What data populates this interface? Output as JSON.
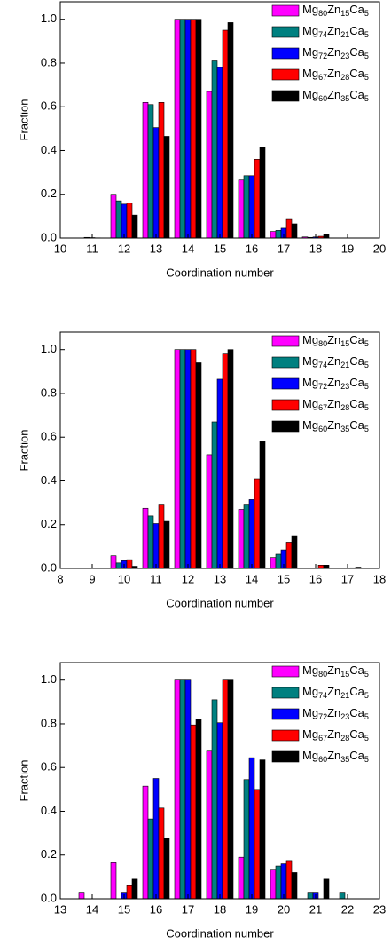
{
  "chart_data": [
    {
      "type": "bar",
      "x_label": "Coordination number",
      "y_label": "Fraction",
      "x": [
        11,
        12,
        13,
        14,
        15,
        16,
        17,
        18
      ],
      "xlim": [
        10,
        20
      ],
      "xticks": [
        10,
        11,
        12,
        13,
        14,
        15,
        16,
        17,
        18,
        19,
        20
      ],
      "ylim": [
        0,
        1.08
      ],
      "yticks": [
        {
          "value": 0,
          "label": "0.0"
        },
        {
          "value": 0.2,
          "label": "0.2"
        },
        {
          "value": 0.4,
          "label": "0.4"
        },
        {
          "value": 0.6,
          "label": "0.6"
        },
        {
          "value": 0.8,
          "label": "0.8"
        },
        {
          "value": 1,
          "label": "1.0"
        }
      ],
      "legend": "upper right",
      "series": [
        {
          "name": "Mg80Zn15Ca5",
          "color": "#ff00ff",
          "values": [
            0,
            0.2,
            0.62,
            1,
            0.67,
            0.265,
            0.03,
            0.005
          ]
        },
        {
          "name": "Mg74Zn21Ca5",
          "color": "#008080",
          "values": [
            0.003,
            0.17,
            0.61,
            1,
            0.81,
            0.285,
            0.035,
            0.003
          ]
        },
        {
          "name": "Mg72Zn23Ca5",
          "color": "#0000ff",
          "values": [
            0.002,
            0.155,
            0.505,
            1,
            0.78,
            0.285,
            0.045,
            0.005
          ]
        },
        {
          "name": "Mg67Zn28Ca5",
          "color": "#ff0000",
          "values": [
            0.001,
            0.16,
            0.62,
            1,
            0.95,
            0.36,
            0.085,
            0.008
          ]
        },
        {
          "name": "Mg60Zn35Ca5",
          "color": "#000000",
          "values": [
            0,
            0.105,
            0.465,
            1,
            0.985,
            0.415,
            0.065,
            0.015
          ]
        }
      ]
    },
    {
      "type": "bar",
      "x_label": "Coordination number",
      "y_label": "Fraction",
      "x": [
        10,
        11,
        12,
        13,
        14,
        15,
        16,
        17
      ],
      "xlim": [
        8,
        18
      ],
      "xticks": [
        8,
        9,
        10,
        11,
        12,
        13,
        14,
        15,
        16,
        17,
        18
      ],
      "ylim": [
        0,
        1.08
      ],
      "yticks": [
        {
          "value": 0,
          "label": "0.0"
        },
        {
          "value": 0.2,
          "label": "0.2"
        },
        {
          "value": 0.4,
          "label": "0.4"
        },
        {
          "value": 0.6,
          "label": "0.6"
        },
        {
          "value": 0.8,
          "label": "0.8"
        },
        {
          "value": 1,
          "label": "1.0"
        }
      ],
      "legend": "upper right",
      "series": [
        {
          "name": "Mg80Zn15Ca5",
          "color": "#ff00ff",
          "values": [
            0.058,
            0.275,
            1,
            0.52,
            0.27,
            0.05,
            0,
            0
          ]
        },
        {
          "name": "Mg74Zn21Ca5",
          "color": "#008080",
          "values": [
            0.025,
            0.24,
            1,
            0.67,
            0.29,
            0.065,
            0,
            0
          ]
        },
        {
          "name": "Mg72Zn23Ca5",
          "color": "#0000ff",
          "values": [
            0.035,
            0.205,
            1,
            0.865,
            0.315,
            0.085,
            0,
            0
          ]
        },
        {
          "name": "Mg67Zn28Ca5",
          "color": "#ff0000",
          "values": [
            0.04,
            0.29,
            1,
            0.98,
            0.41,
            0.12,
            0.015,
            0.003
          ]
        },
        {
          "name": "Mg60Zn35Ca5",
          "color": "#000000",
          "values": [
            0.01,
            0.215,
            0.94,
            1,
            0.58,
            0.15,
            0.015,
            0.006
          ]
        }
      ]
    },
    {
      "type": "bar",
      "x_label": "Coordination number",
      "y_label": "Fraction",
      "x": [
        14,
        15,
        16,
        17,
        18,
        19,
        20,
        21,
        22
      ],
      "xlim": [
        13,
        23
      ],
      "xticks": [
        13,
        14,
        15,
        16,
        17,
        18,
        19,
        20,
        21,
        22,
        23
      ],
      "ylim": [
        0,
        1.08
      ],
      "yticks": [
        {
          "value": 0,
          "label": "0.0"
        },
        {
          "value": 0.2,
          "label": "0.2"
        },
        {
          "value": 0.4,
          "label": "0.4"
        },
        {
          "value": 0.6,
          "label": "0.6"
        },
        {
          "value": 0.8,
          "label": "0.8"
        },
        {
          "value": 1,
          "label": "1.0"
        }
      ],
      "legend": "upper right",
      "series": [
        {
          "name": "Mg80Zn15Ca5",
          "color": "#ff00ff",
          "values": [
            0.03,
            0.165,
            0.515,
            1,
            0.675,
            0.19,
            0.135,
            0,
            0
          ]
        },
        {
          "name": "Mg74Zn21Ca5",
          "color": "#008080",
          "values": [
            0,
            0,
            0.365,
            1,
            0.91,
            0.545,
            0.15,
            0.03,
            0.03
          ]
        },
        {
          "name": "Mg72Zn23Ca5",
          "color": "#0000ff",
          "values": [
            0,
            0.03,
            0.55,
            1,
            0.805,
            0.645,
            0.16,
            0.03,
            0
          ]
        },
        {
          "name": "Mg67Zn28Ca5",
          "color": "#ff0000",
          "values": [
            0,
            0.06,
            0.415,
            0.795,
            1,
            0.5,
            0.175,
            0,
            0
          ]
        },
        {
          "name": "Mg60Zn35Ca5",
          "color": "#000000",
          "values": [
            0,
            0.09,
            0.275,
            0.82,
            1,
            0.635,
            0.12,
            0.09,
            0
          ]
        }
      ]
    }
  ]
}
